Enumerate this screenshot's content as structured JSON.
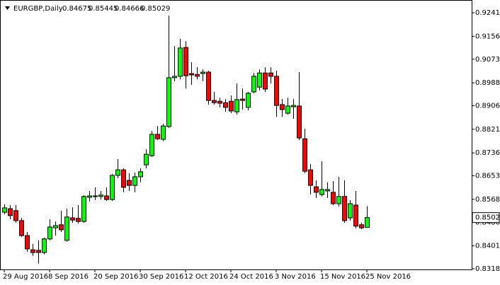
{
  "chart_data": {
    "type": "candlestick",
    "title": "EURGBP,Daily",
    "categories": [
      "29 Aug 2016",
      null,
      null,
      null,
      null,
      null,
      null,
      null,
      "8 Sep 2016",
      null,
      null,
      null,
      null,
      null,
      null,
      null,
      "20 Sep 2016",
      null,
      null,
      null,
      null,
      null,
      null,
      null,
      "30 Sep 2016",
      null,
      null,
      null,
      null,
      null,
      null,
      null,
      "12 Oct 2016",
      null,
      null,
      null,
      null,
      null,
      null,
      null,
      "24 Oct 2016",
      null,
      null,
      null,
      null,
      null,
      null,
      null,
      "3 Nov 2016",
      null,
      null,
      null,
      null,
      null,
      null,
      null,
      "15 Nov 2016",
      null,
      null,
      null,
      null,
      null,
      null,
      null,
      "25 Nov 2016"
    ],
    "open": [
      0.8522,
      0.8535,
      0.8528,
      0.8492,
      0.8438,
      0.8387,
      0.8385,
      0.8377,
      0.8426,
      0.8466,
      0.8477,
      0.8421,
      0.8502,
      0.85,
      0.8489,
      0.8576,
      0.8579,
      0.8579,
      0.8581,
      0.8568,
      0.8655,
      0.8675,
      0.8637,
      0.8619,
      0.865,
      0.8693,
      0.8726,
      0.8803,
      0.8785,
      0.8831,
      0.9007,
      0.9012,
      0.9116,
      0.9022,
      0.9019,
      0.9022,
      0.9027,
      0.8925,
      0.8922,
      0.8917,
      0.8922,
      0.8884,
      0.893,
      0.89,
      0.8956,
      0.8973,
      0.9024,
      0.9024,
      0.9012,
      0.891,
      0.8879,
      0.8902,
      0.8905,
      0.8787,
      0.8675,
      0.8614,
      0.8586,
      0.8599,
      0.8594,
      0.8553,
      0.8579,
      0.8502,
      0.8548,
      0.8477,
      0.84675
    ],
    "high": [
      0.8551,
      0.8548,
      0.8548,
      0.8502,
      0.8451,
      0.8408,
      0.8421,
      0.8431,
      0.8497,
      0.8489,
      0.8528,
      0.8535,
      0.854,
      0.8548,
      0.8584,
      0.8599,
      0.8612,
      0.8599,
      0.8612,
      0.866,
      0.8714,
      0.868,
      0.8663,
      0.8665,
      0.868,
      0.8749,
      0.8815,
      0.8833,
      0.8841,
      0.9231,
      0.9121,
      0.9147,
      0.9139,
      0.9063,
      0.9045,
      0.9037,
      0.9032,
      0.8956,
      0.8935,
      0.893,
      0.8943,
      0.8986,
      0.8968,
      0.8956,
      0.9024,
      0.9037,
      0.9045,
      0.9045,
      0.9032,
      0.893,
      0.8935,
      0.893,
      0.9027,
      0.8823,
      0.8696,
      0.8637,
      0.8706,
      0.863,
      0.8635,
      0.865,
      0.8637,
      0.8566,
      0.8599,
      0.8484,
      0.85445
    ],
    "low": [
      0.8515,
      0.8497,
      0.8484,
      0.8433,
      0.838,
      0.8365,
      0.8337,
      0.837,
      0.8421,
      0.8438,
      0.8451,
      0.8415,
      0.8484,
      0.8482,
      0.8484,
      0.8561,
      0.8566,
      0.8568,
      0.8563,
      0.8563,
      0.8645,
      0.8594,
      0.8599,
      0.8594,
      0.863,
      0.868,
      0.8721,
      0.8782,
      0.8779,
      0.8826,
      0.8994,
      0.9001,
      0.8968,
      0.8981,
      0.9001,
      0.8994,
      0.891,
      0.891,
      0.89,
      0.8884,
      0.8879,
      0.8874,
      0.8892,
      0.8889,
      0.8951,
      0.8961,
      0.8956,
      0.8986,
      0.8866,
      0.8866,
      0.8874,
      0.8859,
      0.8782,
      0.8663,
      0.8586,
      0.8573,
      0.8579,
      0.8573,
      0.8548,
      0.8543,
      0.8484,
      0.8492,
      0.8464,
      0.8461,
      0.84666
    ],
    "close": [
      0.8538,
      0.851,
      0.8492,
      0.8438,
      0.839,
      0.8377,
      0.8377,
      0.8426,
      0.8469,
      0.8474,
      0.8459,
      0.8505,
      0.8494,
      0.8489,
      0.8579,
      0.8581,
      0.8581,
      0.8584,
      0.8568,
      0.8655,
      0.8675,
      0.8612,
      0.8619,
      0.865,
      0.8668,
      0.8731,
      0.8803,
      0.8787,
      0.8833,
      0.9007,
      0.9012,
      0.9114,
      0.9014,
      0.9017,
      0.9012,
      0.9027,
      0.8925,
      0.8917,
      0.8915,
      0.89,
      0.8887,
      0.8928,
      0.8925,
      0.8951,
      0.9012,
      0.9024,
      0.8966,
      0.9012,
      0.8907,
      0.8892,
      0.8905,
      0.8907,
      0.879,
      0.867,
      0.8619,
      0.8594,
      0.8604,
      0.8604,
      0.8553,
      0.8579,
      0.8492,
      0.8553,
      0.8472,
      0.8466,
      0.85029
    ],
    "up_color": "#00ff00",
    "down_color": "#ff0000",
    "ylim": [
      0.8316,
      0.9287
    ],
    "yticks": [
      {
        "value": 0.9241,
        "label": "0.92410"
      },
      {
        "value": 0.9156,
        "label": "0.91560"
      },
      0.90735,
      0.89885,
      {
        "value": 0.8906,
        "label": "0.89060"
      },
      {
        "value": 0.8821,
        "label": "0.88210"
      },
      {
        "value": 0.8736,
        "label": "0.87360"
      },
      0.86535,
      0.85685,
      {
        "value": 0.8486,
        "label": "0.84860"
      },
      {
        "value": 0.8401,
        "label": "0.84010"
      },
      0.83185
    ],
    "grid": false
  }
}
